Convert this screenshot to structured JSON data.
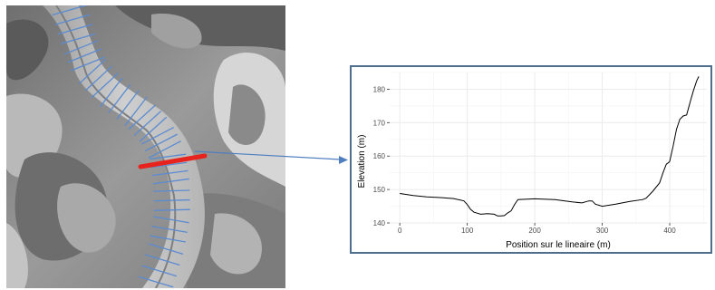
{
  "colors": {
    "frame": "#4f6d8c",
    "arrow": "#4f7ec0",
    "transects": "#5b8bd1",
    "highlight_transect": "#e8231d",
    "profile_line": "#000000",
    "grid": "#ebebeb"
  },
  "map": {
    "type": "hillshade-relief",
    "transect_count": 34,
    "highlighted_transect": "red"
  },
  "chart_data": {
    "type": "line",
    "title": "",
    "xlabel": "Position sur le lineaire (m)",
    "ylabel": "Elevation (m)",
    "xlim": [
      -15,
      455
    ],
    "ylim": [
      140,
      185
    ],
    "xticks": [
      0,
      100,
      200,
      300,
      400
    ],
    "yticks": [
      140,
      150,
      160,
      170,
      180
    ],
    "grid": true,
    "legend": "none",
    "series": [
      {
        "x": [
          0,
          20,
          40,
          60,
          80,
          95,
          100,
          105,
          110,
          120,
          130,
          140,
          145,
          150,
          155,
          160,
          165,
          170,
          175,
          200,
          230,
          255,
          270,
          280,
          285,
          290,
          300,
          320,
          340,
          360,
          365,
          375,
          385,
          390,
          395,
          398,
          400,
          405,
          410,
          415,
          420,
          425,
          430,
          435,
          440,
          443
        ],
        "y": [
          148.8,
          148.2,
          147.8,
          147.6,
          147.3,
          146.6,
          145.5,
          144.0,
          143.2,
          142.6,
          142.8,
          142.6,
          142.1,
          142.1,
          142.2,
          143.0,
          143.6,
          145.5,
          147.0,
          147.2,
          147.0,
          146.3,
          146.0,
          146.6,
          146.6,
          145.6,
          145.0,
          145.6,
          146.4,
          147.0,
          147.4,
          149.5,
          152.0,
          155.0,
          157.6,
          158.0,
          158.4,
          163.0,
          168.0,
          171.0,
          172.0,
          172.3,
          176.0,
          179.5,
          182.5,
          183.8
        ]
      }
    ]
  }
}
